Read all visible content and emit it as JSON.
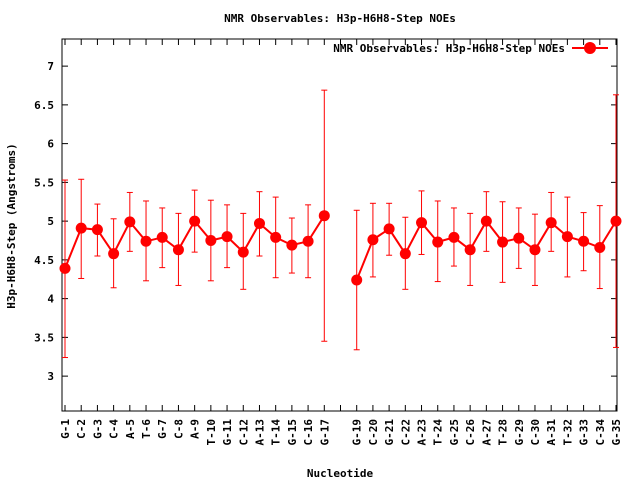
{
  "chart_data": {
    "type": "line",
    "title": "NMR Observables: H3p-H6H8-Step NOEs",
    "xlabel": "Nucleotide",
    "ylabel": "H3p-H6H8-Step (Angstroms)",
    "ylim": [
      2.55,
      7.35
    ],
    "yticks": [
      "3",
      "3.5",
      "4",
      "4.5",
      "5",
      "5.5",
      "6",
      "6.5",
      "7"
    ],
    "grid": false,
    "legend_position": "top-right",
    "color": "#ff0000",
    "categories": [
      "G-1",
      "C-2",
      "G-3",
      "C-4",
      "A-5",
      "T-6",
      "G-7",
      "C-8",
      "A-9",
      "T-10",
      "G-11",
      "C-12",
      "A-13",
      "T-14",
      "G-15",
      "C-16",
      "G-17",
      "",
      "G-19",
      "C-20",
      "G-21",
      "C-22",
      "A-23",
      "T-24",
      "G-25",
      "C-26",
      "A-27",
      "T-28",
      "G-29",
      "C-30",
      "A-31",
      "T-32",
      "G-33",
      "C-34",
      "G-35"
    ],
    "series": [
      {
        "name": "NMR Observables: H3p-H6H8-Step NOEs",
        "values": [
          4.39,
          4.91,
          4.89,
          4.58,
          4.99,
          4.74,
          4.79,
          4.63,
          5.0,
          4.75,
          4.8,
          4.6,
          4.97,
          4.79,
          4.69,
          4.74,
          5.07,
          null,
          4.24,
          4.76,
          4.9,
          4.58,
          4.98,
          4.73,
          4.79,
          4.63,
          5.0,
          4.73,
          4.78,
          4.63,
          4.98,
          4.8,
          4.74,
          4.66,
          5.0
        ],
        "err_low": [
          3.24,
          4.26,
          4.55,
          4.14,
          4.61,
          4.23,
          4.4,
          4.17,
          4.6,
          4.23,
          4.4,
          4.12,
          4.55,
          4.27,
          4.33,
          4.27,
          3.45,
          null,
          3.34,
          4.28,
          4.56,
          4.12,
          4.57,
          4.22,
          4.42,
          4.17,
          4.61,
          4.21,
          4.39,
          4.17,
          4.61,
          4.28,
          4.36,
          4.13,
          3.37
        ],
        "err_high": [
          5.53,
          5.54,
          5.22,
          5.03,
          5.37,
          5.26,
          5.17,
          5.1,
          5.4,
          5.27,
          5.21,
          5.1,
          5.38,
          5.31,
          5.04,
          5.21,
          6.69,
          null,
          5.14,
          5.23,
          5.23,
          5.05,
          5.39,
          5.26,
          5.17,
          5.1,
          5.38,
          5.25,
          5.17,
          5.09,
          5.37,
          5.31,
          5.11,
          5.2,
          6.63
        ]
      }
    ]
  }
}
